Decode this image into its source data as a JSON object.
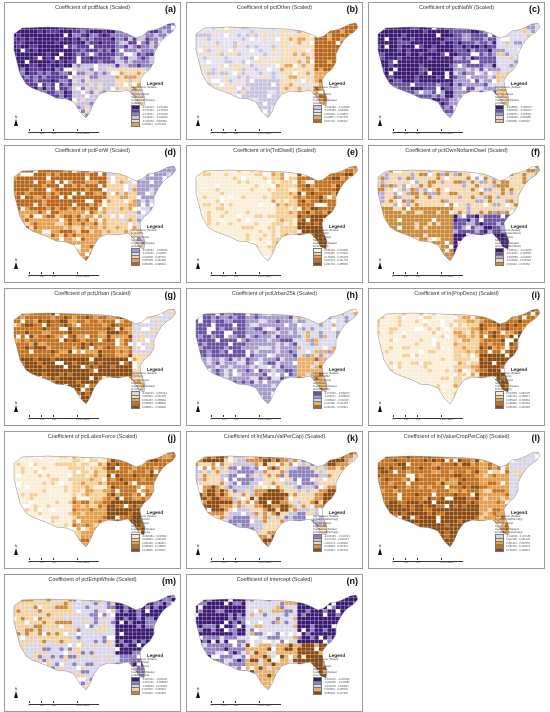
{
  "common": {
    "north_label": "N",
    "legend_title": "Legend",
    "sig_title": "Significance (Scaled",
    "not_sig": "Not Significant",
    "sig": "Significant",
    "coef_title": "Coefficient (Scaled",
    "scale_labels": [
      "0",
      "300",
      "600",
      "1,200 Miles"
    ]
  },
  "panels": [
    {
      "letter": "(a)",
      "title": "Coefficient of pctBlack (Scaled)",
      "var": "pctBlack)",
      "legend_values": [
        "-0.324325 - -0.272163",
        "-0.272162 - -0.173548",
        "-0.173547 - -0.105328",
        "-0.105327 - -0.049230",
        "-0.049229 - 0.002840",
        "0.002841 - 0.071254"
      ],
      "palette": [
        "#3b1a73",
        "#5d3e96",
        "#8f81bd",
        "#c8c4df",
        "#f0d9b8",
        "#e0a155"
      ],
      "pattern": "a"
    },
    {
      "letter": "(b)",
      "title": "Coefficient of pctOther (Scaled)",
      "var": "pctOther)",
      "legend_values": [
        "-0.042168 - -0.016340",
        "-0.016339 - 0.003562",
        "0.003563 - 0.019876",
        "0.019877 - 0.037718",
        "0.037719 - 0.066247"
      ],
      "palette": [
        "#c8c4df",
        "#e4e1ef",
        "#f6dcb7",
        "#e8a75a",
        "#b8651a"
      ],
      "pattern": "b"
    },
    {
      "letter": "(c)",
      "title": "Coefficient of pctNatW (Scaled)",
      "var": "pctNatW)",
      "legend_values": [
        "-0.138906 - -0.089379",
        "-0.089378 - -0.052674",
        "-0.052673 - -0.025361",
        "-0.025360 - 0.004588",
        "0.004589 - 0.056324"
      ],
      "palette": [
        "#3b1a73",
        "#6a52a3",
        "#a59bcb",
        "#dcd9ec",
        "#f1c98d"
      ],
      "pattern": "c"
    },
    {
      "letter": "(d)",
      "title": "Coefficient of pctForW (Scaled)",
      "var": "pctForW)",
      "legend_values": [
        "-0.048134 - -0.016221",
        "-0.016220 - 0.012837",
        "0.012838 - 0.037624",
        "0.037625 - 0.063185",
        "0.063186 - 0.098441"
      ],
      "palette": [
        "#a59bcb",
        "#d8d5e8",
        "#f3d2a2",
        "#e4a050",
        "#b8651a"
      ],
      "pattern": "d"
    },
    {
      "letter": "(e)",
      "title": "Coefficient of ln(TotDwell) (Scaled)",
      "var": "ln(TotDwell))",
      "legend_values": [
        "0.036120 - 0.104286",
        "0.104287 - 0.176924",
        "0.176925 - 0.254478",
        "0.254479 - 0.341730",
        "0.341731 - 0.458952"
      ],
      "palette": [
        "#fbeed9",
        "#f4cf97",
        "#e4a050",
        "#c2711e",
        "#8a4a10"
      ],
      "pattern": "e"
    },
    {
      "letter": "(f)",
      "title": "Coefficient of pctOwnNofarmDwel (Scaled)",
      "var": "pctOwnNofarmDwel)",
      "legend_values": [
        "-0.196414 - -0.113025",
        "-0.113024 - -0.060587",
        "-0.060586 - -0.019937",
        "-0.019936 - 0.019320",
        "0.019321 - 0.078452"
      ],
      "palette": [
        "#3b1a73",
        "#6a52a3",
        "#b5aed3",
        "#f3d9b1",
        "#c98a3c"
      ],
      "pattern": "f"
    },
    {
      "letter": "(g)",
      "title": "Coefficient of pctUrban (Scaled)",
      "var": "pctUrban)",
      "legend_values": [
        "-0.024513 - 0.006241",
        "0.006242 - 0.031486",
        "0.031487 - 0.058962",
        "0.058963 - 0.088520",
        "0.088521 - 0.128904"
      ],
      "palette": [
        "#d8d5e8",
        "#f4d6a8",
        "#e4a050",
        "#c2711e",
        "#8a4a10"
      ],
      "pattern": "g"
    },
    {
      "letter": "(h)",
      "title": "Coefficient of pctUrban25k (Scaled)",
      "var": "pctUrban25k)",
      "legend_values": [
        "-0.071846 - -0.034672",
        "-0.034671 - -0.008914",
        "-0.008913 - 0.014307",
        "0.014308 - 0.041659",
        "0.041660 - 0.078313"
      ],
      "palette": [
        "#6a52a3",
        "#a59bcb",
        "#dcd9ec",
        "#e8b06a",
        "#b8651a"
      ],
      "pattern": "h"
    },
    {
      "letter": "(i)",
      "title": "Coefficient of ln(PopDens) (Scaled)",
      "var": "ln(PopDens))",
      "legend_values": [
        "0.013548 - 0.084720",
        "0.084721 - 0.155017",
        "0.155018 - 0.236891",
        "0.236892 - 0.331562",
        "0.331563 - 0.460283"
      ],
      "palette": [
        "#fbeed9",
        "#f4cf97",
        "#e4a050",
        "#c2711e",
        "#8a4a10"
      ],
      "pattern": "i"
    },
    {
      "letter": "(j)",
      "title": "Coefficient of pctLaborForce (Scaled)",
      "var": "pctLaborForce)",
      "legend_values": [
        "-0.006184 - 0.030562",
        "0.030563 - 0.061245",
        "0.061246 - 0.089317",
        "0.089318 - 0.118804",
        "0.118805 - 0.156327"
      ],
      "palette": [
        "#fbeed9",
        "#f4cf97",
        "#e4a050",
        "#c2711e",
        "#8a4a10"
      ],
      "pattern": "j"
    },
    {
      "letter": "(k)",
      "title": "Coefficient of ln(ManuValPerCap) (Scaled)",
      "var": "ln(ManuValPerCap))",
      "legend_values": [
        "-0.043159 - -0.017224",
        "-0.017223 - 0.001573",
        "0.001574 - 0.018962",
        "0.018963 - 0.037841",
        "0.037842 - 0.066704"
      ],
      "palette": [
        "#8f81bd",
        "#c8c4df",
        "#f3d9b1",
        "#d9904a",
        "#8a4a10"
      ],
      "pattern": "k"
    },
    {
      "letter": "(l)",
      "title": "Coefficient of ln(ValueCropPerCap) (Scaled)",
      "var": "ln(ValueCropPerCap))",
      "legend_values": [
        "-0.011342 - 0.027185",
        "0.027186 - 0.061420",
        "0.061421 - 0.097653",
        "0.097654 - 0.139278",
        "0.139279 - 0.194615"
      ],
      "palette": [
        "#d8d5e8",
        "#f4cf97",
        "#e4a050",
        "#c2711e",
        "#8a4a10"
      ],
      "pattern": "l"
    },
    {
      "letter": "(m)",
      "title": "Coefficient of pctEmpWhole (Scaled)",
      "var": "pctEmpWhole)",
      "legend_values": [
        "-0.067612 - -0.031427",
        "-0.031426 - -0.008935",
        "-0.008934 - 0.010378",
        "0.010379 - 0.030915",
        "0.030916 - 0.060842"
      ],
      "palette": [
        "#3b1a73",
        "#8f81bd",
        "#d8d5e8",
        "#f3d2a2",
        "#c98a3c"
      ],
      "pattern": "m"
    },
    {
      "letter": "(n)",
      "title": "Coefficient of Intercept (Scaled)",
      "var": "Intercept)",
      "legend_values": [
        "-0.621043 - -0.322560",
        "-0.322559 - -0.134280",
        "-0.134279 - 0.023817",
        "0.023818 - 0.185534",
        "0.185535 - 0.417962"
      ],
      "palette": [
        "#3b1a73",
        "#8f81bd",
        "#dcd9ec",
        "#e8b06a",
        "#8a4a10"
      ],
      "pattern": "n"
    }
  ]
}
